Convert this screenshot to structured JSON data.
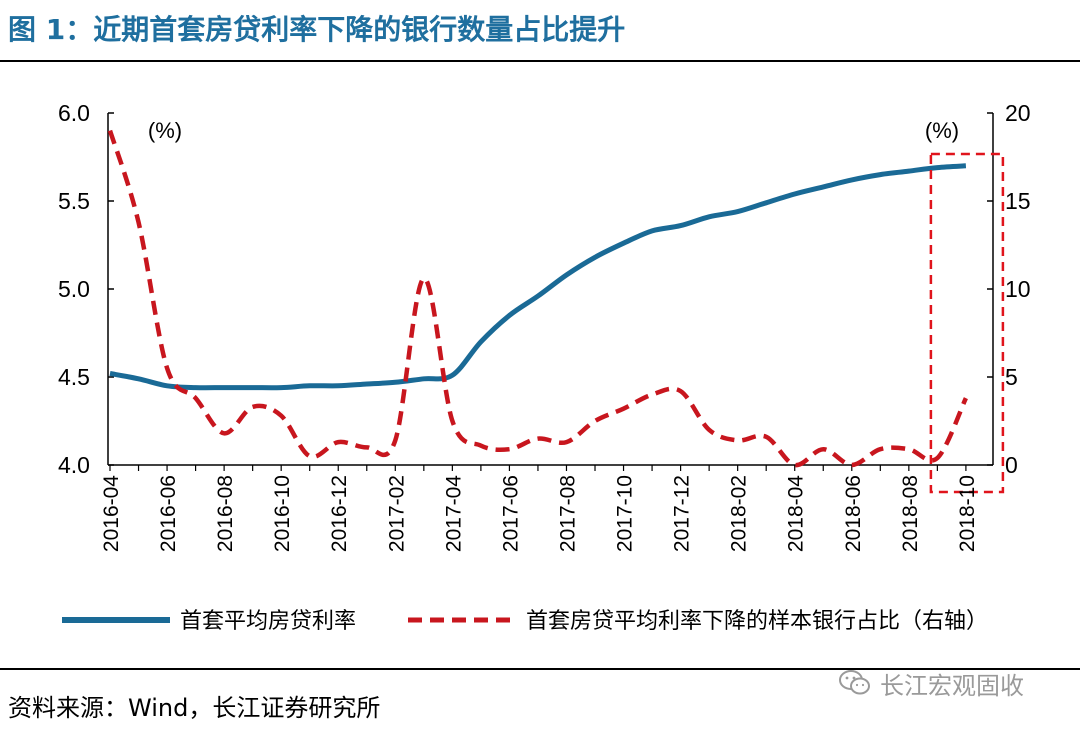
{
  "title": "图 1：近期首套房贷利率下降的银行数量占比提升",
  "source": "资料来源：Wind，长江证券研究所",
  "watermark": "长江宏观固收",
  "colors": {
    "title": "#1f6f9f",
    "series_rate": "#1a6a96",
    "series_share": "#c8161e",
    "highlight_box": "#e0141c"
  },
  "chart_data": {
    "type": "line",
    "left_axis_unit": "(%)",
    "right_axis_unit": "(%)",
    "ylim_left": [
      4.0,
      6.0
    ],
    "ylim_right": [
      0,
      20
    ],
    "yticks_left": [
      "6.0",
      "5.5",
      "5.0",
      "4.5",
      "4.0"
    ],
    "yticks_right": [
      "20",
      "15",
      "10",
      "5",
      "0"
    ],
    "xtick_labels": [
      "2016-04",
      "2016-06",
      "2016-08",
      "2016-10",
      "2016-12",
      "2017-02",
      "2017-04",
      "2017-06",
      "2017-08",
      "2017-10",
      "2017-12",
      "2018-02",
      "2018-04",
      "2018-06",
      "2018-08",
      "2018-10"
    ],
    "x": [
      "2016-04",
      "2016-05",
      "2016-06",
      "2016-07",
      "2016-08",
      "2016-09",
      "2016-10",
      "2016-11",
      "2016-12",
      "2017-01",
      "2017-02",
      "2017-03",
      "2017-04",
      "2017-05",
      "2017-06",
      "2017-07",
      "2017-08",
      "2017-09",
      "2017-10",
      "2017-11",
      "2017-12",
      "2018-01",
      "2018-02",
      "2018-03",
      "2018-04",
      "2018-05",
      "2018-06",
      "2018-07",
      "2018-08",
      "2018-09",
      "2018-10"
    ],
    "legend_position": "bottom",
    "highlight": "2018-10",
    "series": [
      {
        "name": "首套平均房贷利率",
        "axis": "left",
        "style": "solid",
        "values": [
          4.52,
          4.49,
          4.45,
          4.44,
          4.44,
          4.44,
          4.44,
          4.45,
          4.45,
          4.46,
          4.47,
          4.49,
          4.51,
          4.7,
          4.85,
          4.96,
          5.08,
          5.18,
          5.26,
          5.33,
          5.36,
          5.41,
          5.44,
          5.49,
          5.54,
          5.58,
          5.62,
          5.65,
          5.67,
          5.69,
          5.7
        ]
      },
      {
        "name": "首套房贷平均利率下降的样本银行占比（右轴）",
        "axis": "right",
        "style": "dashed",
        "values": [
          19.0,
          13.8,
          5.5,
          3.8,
          1.8,
          3.3,
          2.8,
          0.5,
          1.3,
          1.0,
          1.4,
          10.6,
          2.5,
          1.1,
          0.9,
          1.5,
          1.3,
          2.5,
          3.2,
          4.0,
          4.2,
          2.0,
          1.4,
          1.6,
          0.0,
          0.9,
          0.0,
          0.9,
          0.9,
          0.4,
          3.8
        ]
      }
    ]
  }
}
